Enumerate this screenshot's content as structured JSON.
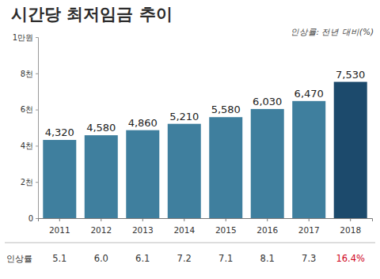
{
  "chart_data": {
    "type": "bar",
    "title": "시간당 최저임금 추이",
    "subtitle": "인상률: 전년 대비(%)",
    "categories": [
      "2011",
      "2012",
      "2013",
      "2014",
      "2015",
      "2016",
      "2017",
      "2018"
    ],
    "values": [
      4320,
      4580,
      4860,
      5210,
      5580,
      6030,
      6470,
      7530
    ],
    "value_labels": [
      "4,320",
      "4,580",
      "4,860",
      "5,210",
      "5,580",
      "6,030",
      "6,470",
      "7,530"
    ],
    "colors": [
      "#3f7f9e",
      "#3f7f9e",
      "#3f7f9e",
      "#3f7f9e",
      "#3f7f9e",
      "#3f7f9e",
      "#3f7f9e",
      "#1c4a6c"
    ],
    "data_labels": true,
    "ylim": [
      0,
      10000
    ],
    "yticks": [
      0,
      {
        "value": 2000,
        "label": "2천"
      },
      {
        "value": 4000,
        "label": "4천"
      },
      {
        "value": 6000,
        "label": "6천"
      },
      {
        "value": 8000,
        "label": "8천"
      },
      {
        "value": 10000,
        "label": "1만원"
      }
    ],
    "grid": false,
    "rate_row": {
      "label": "인상률",
      "values": [
        5.1,
        6.0,
        6.1,
        7.2,
        7.1,
        8.1,
        7.3,
        16.4
      ],
      "value_labels": [
        "5.1",
        "6.0",
        "6.1",
        "7.2",
        "7.1",
        "8.1",
        "7.3",
        "16.4%"
      ],
      "colors": [
        "#333333",
        "#333333",
        "#333333",
        "#333333",
        "#333333",
        "#333333",
        "#333333",
        "#d0021b"
      ]
    }
  }
}
